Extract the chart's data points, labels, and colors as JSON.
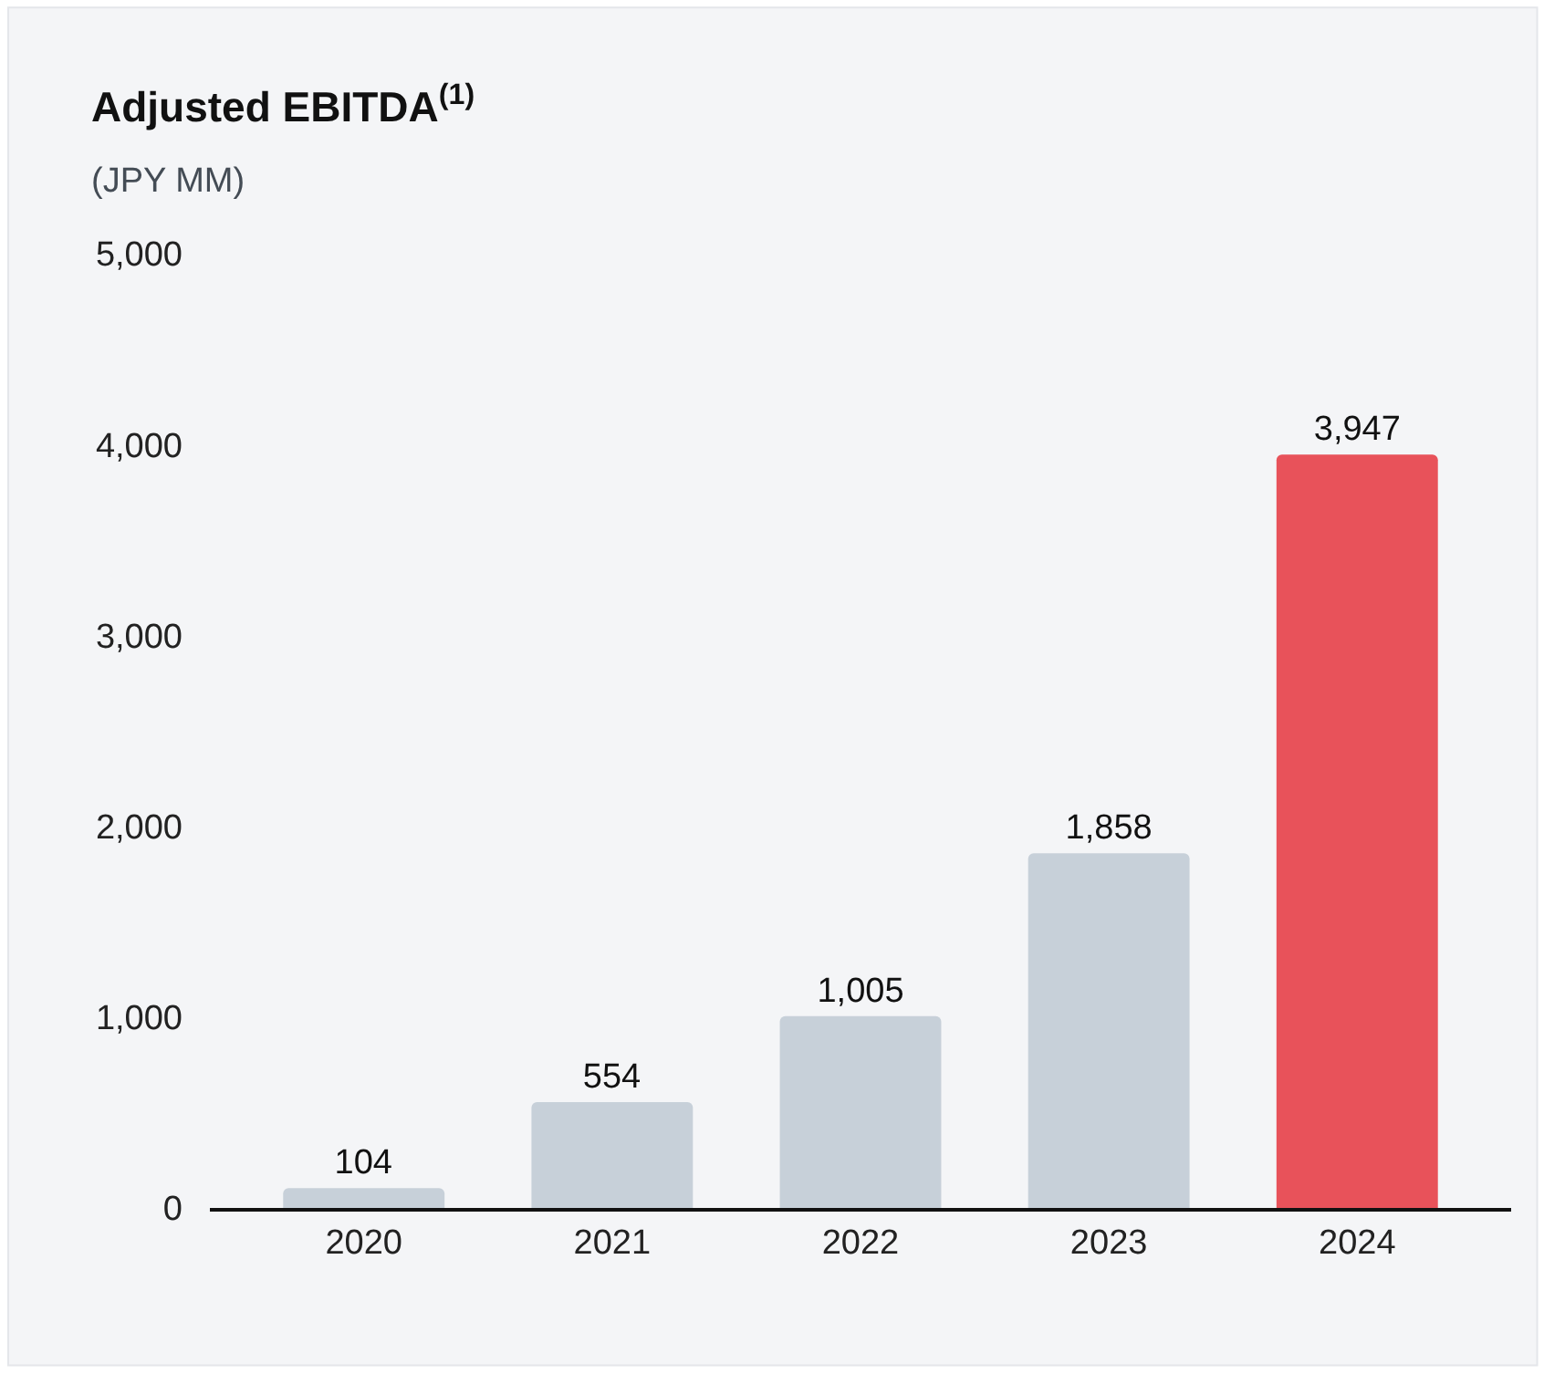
{
  "chart_data": {
    "type": "bar",
    "title": "Adjusted EBITDA$^{(1)}$",
    "subtitle": "(JPY MM)",
    "categories": [
      "2020",
      "2021",
      "2022",
      "2023",
      "2024"
    ],
    "values": [
      104,
      554,
      1005,
      1858,
      3947
    ],
    "colors": [
      "#c7d0d9",
      "#c7d0d9",
      "#c7d0d9",
      "#c7d0d9",
      "#e8525a"
    ],
    "value_labels": [
      "104",
      "554",
      "1,005",
      "1,858",
      "3,947"
    ],
    "ylim": [
      0,
      5000
    ],
    "yticks": [
      {
        "value": 0,
        "label": "0"
      },
      {
        "value": 1000,
        "label": "1,000"
      },
      {
        "value": 2000,
        "label": "2,000"
      },
      {
        "value": 3000,
        "label": "3,000"
      },
      {
        "value": 4000,
        "label": "4,000"
      },
      {
        "value": 5000,
        "label": "5,000"
      }
    ],
    "grid": false,
    "legend": false
  }
}
